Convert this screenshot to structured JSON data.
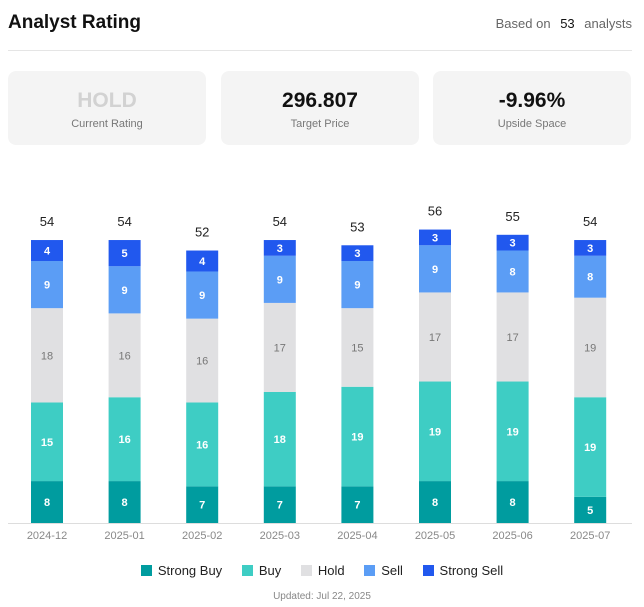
{
  "header": {
    "title": "Analyst Rating",
    "based_prefix": "Based on",
    "analyst_count": "53",
    "based_suffix": "analysts"
  },
  "cards": [
    {
      "value": "HOLD",
      "label": "Current Rating"
    },
    {
      "value": "296.807",
      "label": "Target Price"
    },
    {
      "value": "-9.96%",
      "label": "Upside Space"
    }
  ],
  "colors": {
    "strong_buy": "#009c9f",
    "buy": "#3ecdc4",
    "hold": "#e0e0e2",
    "sell": "#5b9df5",
    "strong_sell": "#2158ee"
  },
  "chart_data": {
    "type": "bar",
    "stacked": true,
    "categories": [
      "2024-12",
      "2025-01",
      "2025-02",
      "2025-03",
      "2025-04",
      "2025-05",
      "2025-06",
      "2025-07"
    ],
    "totals": [
      54,
      54,
      52,
      54,
      53,
      56,
      55,
      54
    ],
    "series": [
      {
        "name": "Strong Buy",
        "key": "strong_buy",
        "values": [
          8,
          8,
          7,
          7,
          7,
          8,
          8,
          5
        ]
      },
      {
        "name": "Buy",
        "key": "buy",
        "values": [
          15,
          16,
          16,
          18,
          19,
          19,
          19,
          19
        ]
      },
      {
        "name": "Hold",
        "key": "hold",
        "values": [
          18,
          16,
          16,
          17,
          15,
          17,
          17,
          19
        ]
      },
      {
        "name": "Sell",
        "key": "sell",
        "values": [
          9,
          9,
          9,
          9,
          9,
          9,
          8,
          8
        ]
      },
      {
        "name": "Strong Sell",
        "key": "strong_sell",
        "values": [
          4,
          5,
          4,
          3,
          3,
          3,
          3,
          3
        ]
      }
    ],
    "ylim": [
      0,
      56
    ],
    "legend": "bottom"
  },
  "footer": {
    "updated": "Updated: Jul 22, 2025"
  }
}
